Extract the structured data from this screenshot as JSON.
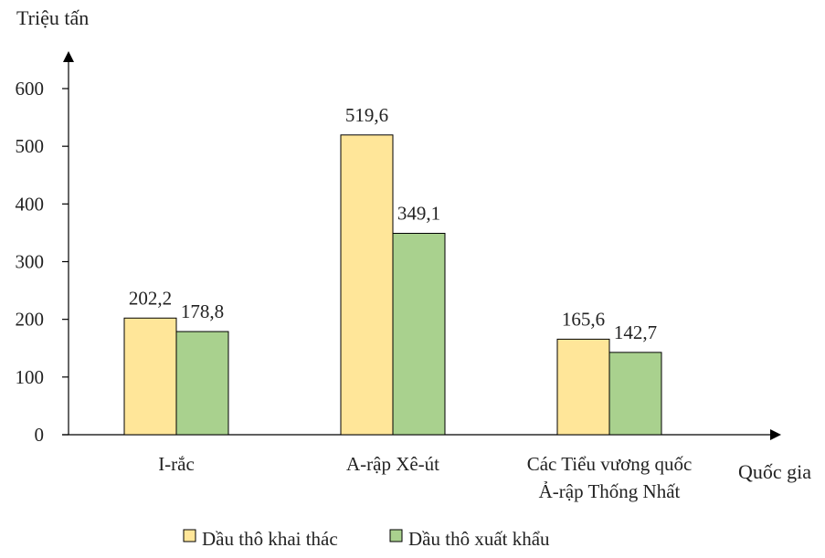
{
  "chart_data": {
    "type": "bar",
    "ylabel": "Triệu tấn",
    "xlabel": "Quốc gia",
    "ylim": [
      0,
      600
    ],
    "yticks": [
      0,
      100,
      200,
      300,
      400,
      500,
      600
    ],
    "categories": [
      [
        "I-rắc"
      ],
      [
        "A-rập Xê-út"
      ],
      [
        "Các Tiểu vương quốc",
        "Ả-rập Thống Nhất"
      ]
    ],
    "series": [
      {
        "name": "Dầu thô khai thác",
        "color": "#FFE699",
        "values": [
          202.2,
          519.6,
          165.6
        ],
        "labels": [
          "202,2",
          "519,6",
          "165,6"
        ]
      },
      {
        "name": "Dầu thô xuất khẩu",
        "color": "#A9D18E",
        "values": [
          178.8,
          349.1,
          142.7
        ],
        "labels": [
          "178,8",
          "349,1",
          "142,7"
        ]
      }
    ],
    "legend_position": "bottom",
    "grid": false
  }
}
